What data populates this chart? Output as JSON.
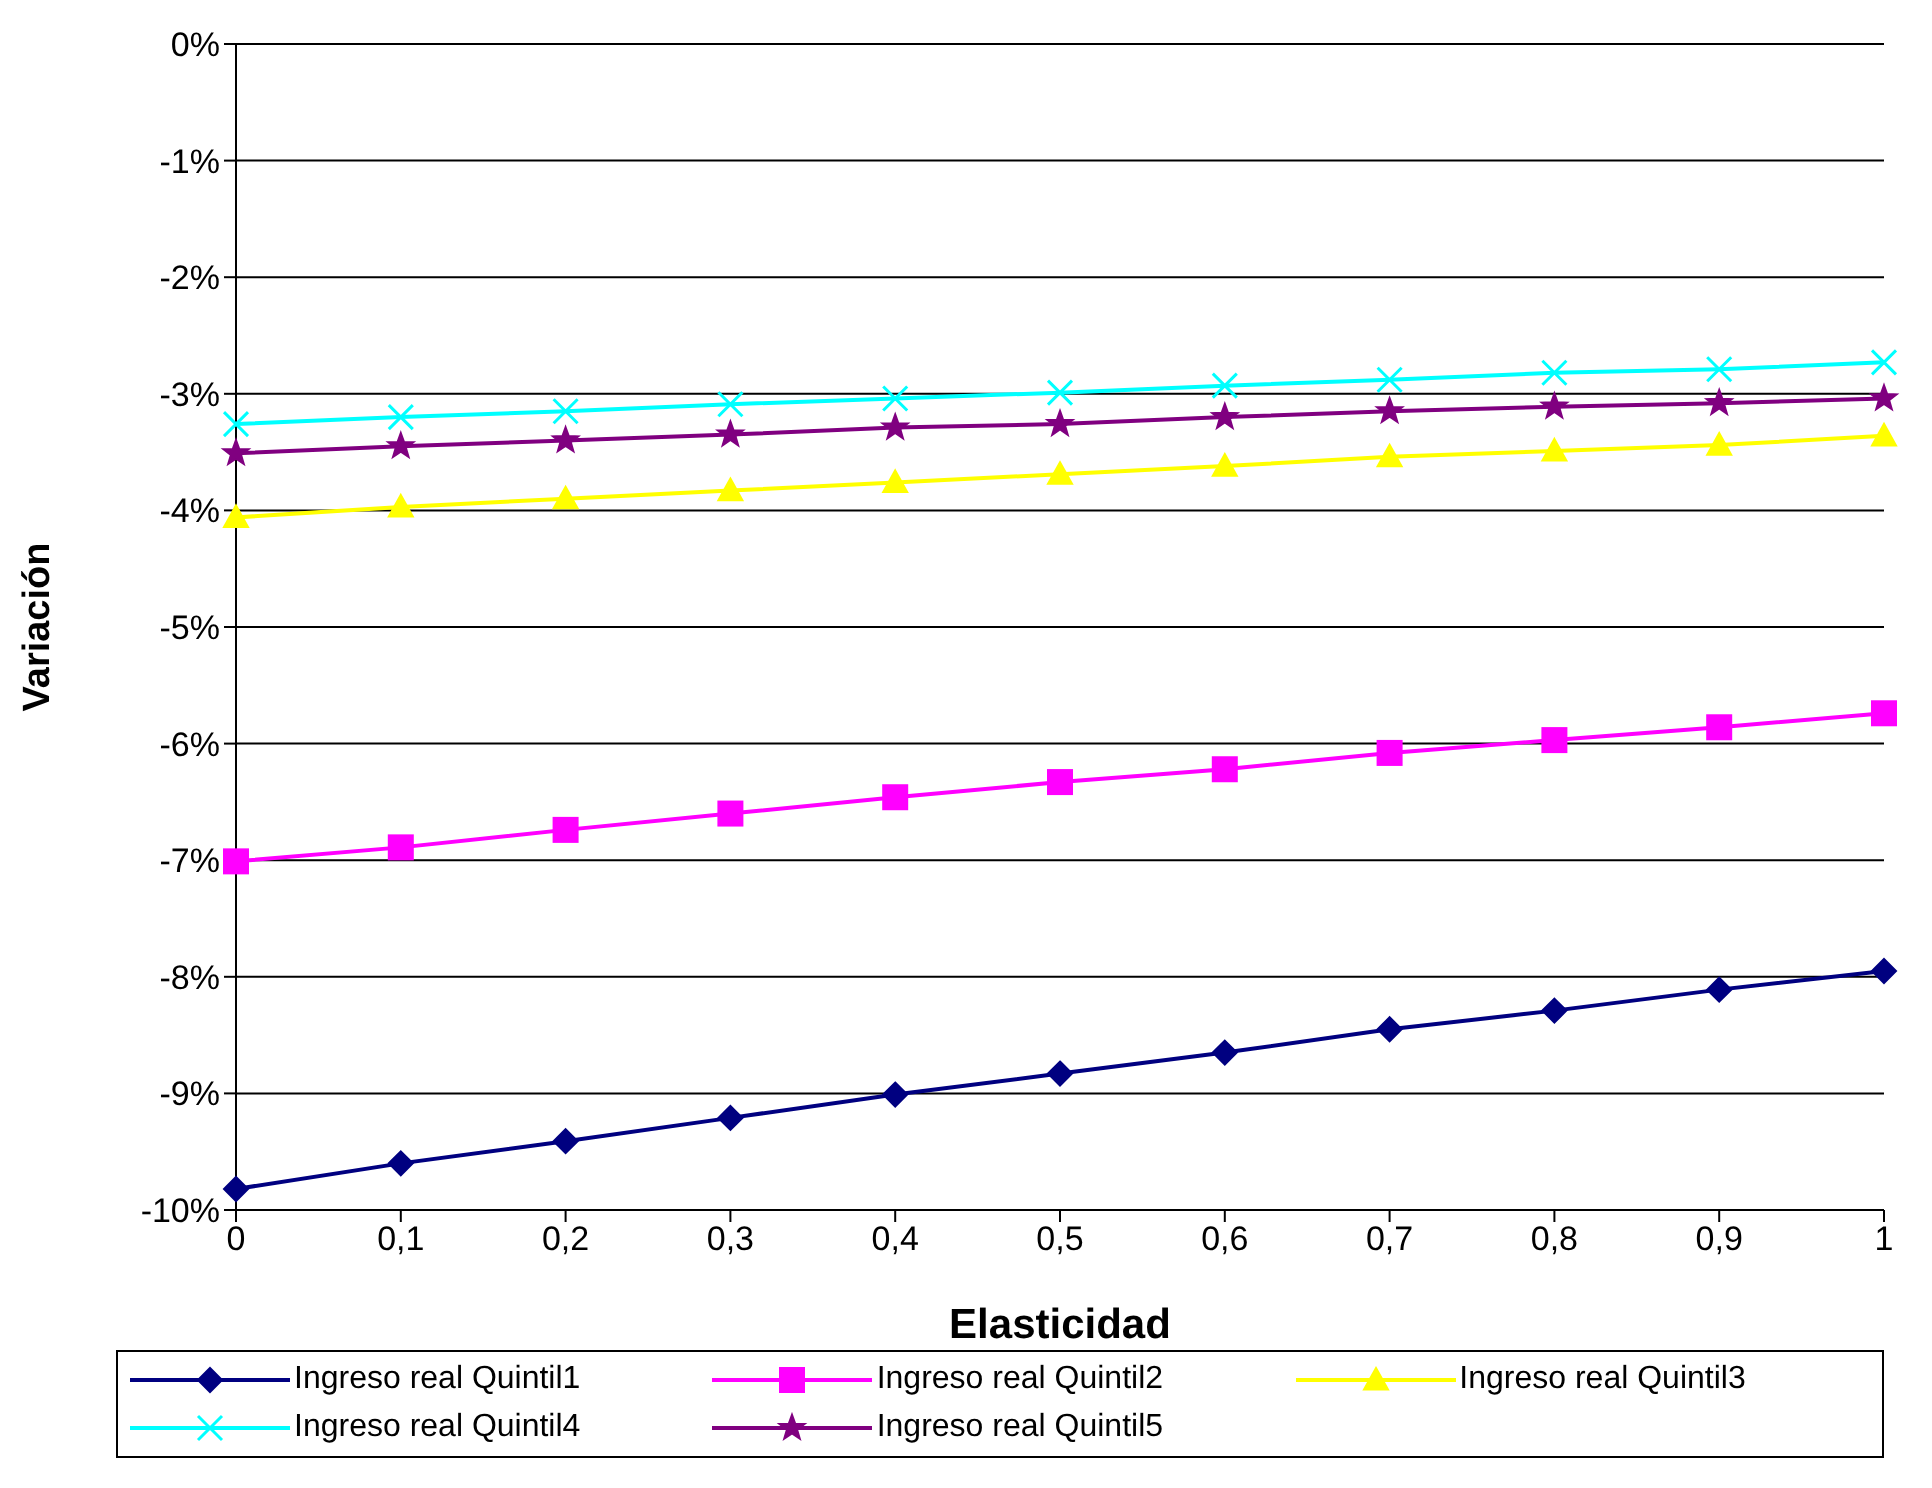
{
  "chart_data": {
    "type": "line",
    "xlabel": "Elasticidad",
    "ylabel": "Variación",
    "categories": [
      "0",
      "0,1",
      "0,2",
      "0,3",
      "0,4",
      "0,5",
      "0,6",
      "0,7",
      "0,8",
      "0,9",
      "1"
    ],
    "ylim": [
      -10,
      0
    ],
    "yticks": [
      {
        "value": -10,
        "label": "-10%"
      },
      {
        "value": -9,
        "label": "-9%"
      },
      {
        "value": -8,
        "label": "-8%"
      },
      {
        "value": -7,
        "label": "-7%"
      },
      {
        "value": -6,
        "label": "-6%"
      },
      {
        "value": -5,
        "label": "-5%"
      },
      {
        "value": -4,
        "label": "-4%"
      },
      {
        "value": -3,
        "label": "-3%"
      },
      {
        "value": -2,
        "label": "-2%"
      },
      {
        "value": -1,
        "label": "-1%"
      },
      {
        "value": 0,
        "label": "0%"
      }
    ],
    "grid": "y",
    "legend": "bottom",
    "line_style": "solid",
    "series": [
      {
        "name": "Ingreso real Quintil1",
        "color": "#000080",
        "marker": "diamond",
        "values": [
          -9.82,
          -9.6,
          -9.41,
          -9.21,
          -9.01,
          -8.83,
          -8.65,
          -8.45,
          -8.29,
          -8.11,
          -7.95
        ]
      },
      {
        "name": "Ingreso real Quintil2",
        "color": "#ff00ff",
        "marker": "square",
        "values": [
          -7.01,
          -6.89,
          -6.74,
          -6.6,
          -6.46,
          -6.33,
          -6.22,
          -6.08,
          -5.97,
          -5.86,
          -5.74
        ]
      },
      {
        "name": "Ingreso real Quintil3",
        "color": "#ffff00",
        "marker": "triangle",
        "values": [
          -4.06,
          -3.97,
          -3.9,
          -3.83,
          -3.76,
          -3.69,
          -3.62,
          -3.54,
          -3.49,
          -3.44,
          -3.36
        ]
      },
      {
        "name": "Ingreso real Quintil4",
        "color": "#00ffff",
        "marker": "cross",
        "values": [
          -3.26,
          -3.2,
          -3.15,
          -3.09,
          -3.04,
          -2.99,
          -2.93,
          -2.88,
          -2.82,
          -2.79,
          -2.73
        ]
      },
      {
        "name": "Ingreso real Quintil5",
        "color": "#800080",
        "marker": "star",
        "values": [
          -3.51,
          -3.45,
          -3.4,
          -3.35,
          -3.29,
          -3.26,
          -3.2,
          -3.15,
          -3.11,
          -3.08,
          -3.04
        ]
      }
    ]
  }
}
